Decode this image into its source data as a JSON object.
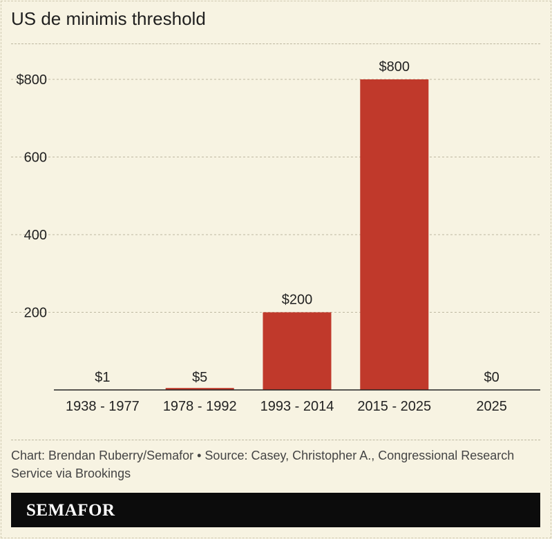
{
  "header": {
    "title": "US de minimis threshold"
  },
  "footer": {
    "credit": "Chart: Brendan Ruberry/Semafor • Source: Casey, Christopher A., Congressional Research Service via Brookings",
    "brand": "SEMAFOR"
  },
  "colors": {
    "bar": "#c0392b",
    "background": "#f7f3e2",
    "brand_bar": "#0c0c0c"
  },
  "chart_data": {
    "type": "bar",
    "title": "US de minimis threshold",
    "categories": [
      "1938 - 1977",
      "1978 - 1992",
      "1993 - 2014",
      "2015 - 2025",
      "2025"
    ],
    "values": [
      1,
      5,
      200,
      800,
      0
    ],
    "data_labels": [
      "$1",
      "$5",
      "$200",
      "$800",
      "$0"
    ],
    "yticks": [
      200,
      400,
      600,
      800
    ],
    "ytick_labels": [
      "200",
      "400",
      "600",
      "$800"
    ],
    "ylim": [
      0,
      800
    ],
    "xlabel": "",
    "ylabel": "",
    "grid": true
  }
}
